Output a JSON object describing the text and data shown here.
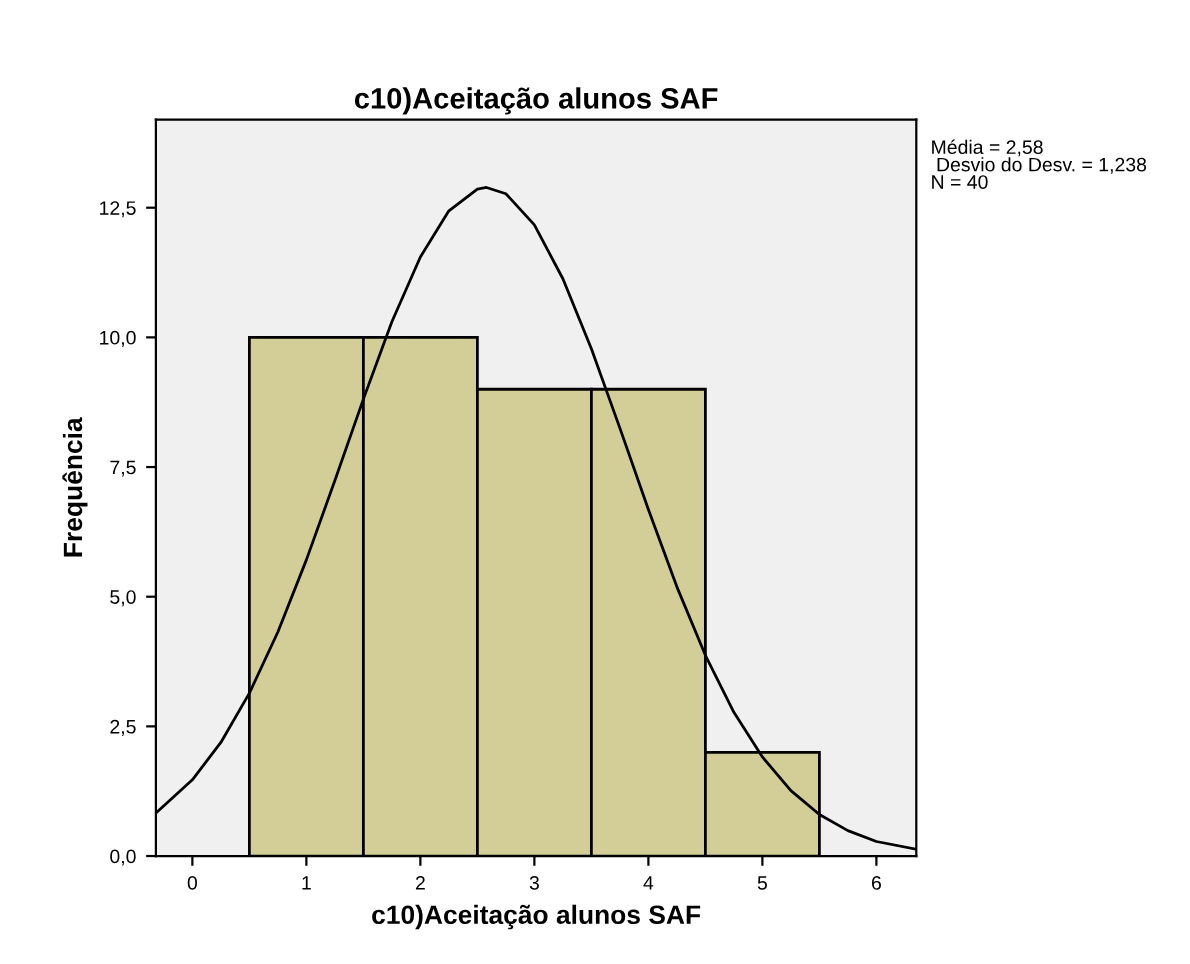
{
  "chart_data": {
    "type": "histogram",
    "title": "c10)Aceitação alunos SAF",
    "xlabel": "c10)Aceitação alunos SAF",
    "ylabel": "Frequência",
    "annotations": [
      "Média = 2,58\n Desvio do Desv. = 1,238\nN = 40"
    ],
    "bins": [
      0.5,
      1.5,
      2.5,
      3.5,
      4.5,
      5.5
    ],
    "values": [
      10,
      10,
      9,
      9,
      2
    ],
    "color": "#d3ce97",
    "series": [
      {
        "type": "line",
        "color": "#000000",
        "x": [
          -0.32,
          0,
          0.25,
          0.5,
          0.75,
          1,
          1.25,
          1.5,
          1.75,
          2,
          2.25,
          2.5,
          2.58,
          2.75,
          3,
          3.25,
          3.5,
          3.75,
          4,
          4.25,
          4.5,
          4.75,
          5,
          5.25,
          5.5,
          5.75,
          6,
          6.35
        ],
        "values": [
          0.83,
          1.47,
          2.19,
          3.14,
          4.32,
          5.71,
          7.24,
          8.81,
          10.3,
          11.55,
          12.44,
          12.86,
          12.89,
          12.77,
          12.17,
          11.13,
          9.78,
          8.25,
          6.68,
          5.19,
          3.87,
          2.77,
          1.91,
          1.26,
          0.8,
          0.49,
          0.28,
          0.13
        ]
      }
    ],
    "xlim": [
      -0.32,
      6.35
    ],
    "xticks": [
      0,
      1,
      2,
      3,
      4,
      5,
      6
    ],
    "ylim": [
      0,
      14.2
    ],
    "yticks": [
      {
        "value": 0,
        "label": "0,0"
      },
      {
        "value": 2.5,
        "label": "2,5"
      },
      {
        "value": 5,
        "label": "5,0"
      },
      {
        "value": 7.5,
        "label": "7,5"
      },
      {
        "value": 10,
        "label": "10,0"
      },
      {
        "value": 12.5,
        "label": "12,5"
      }
    ],
    "grid": false,
    "legend": false
  }
}
